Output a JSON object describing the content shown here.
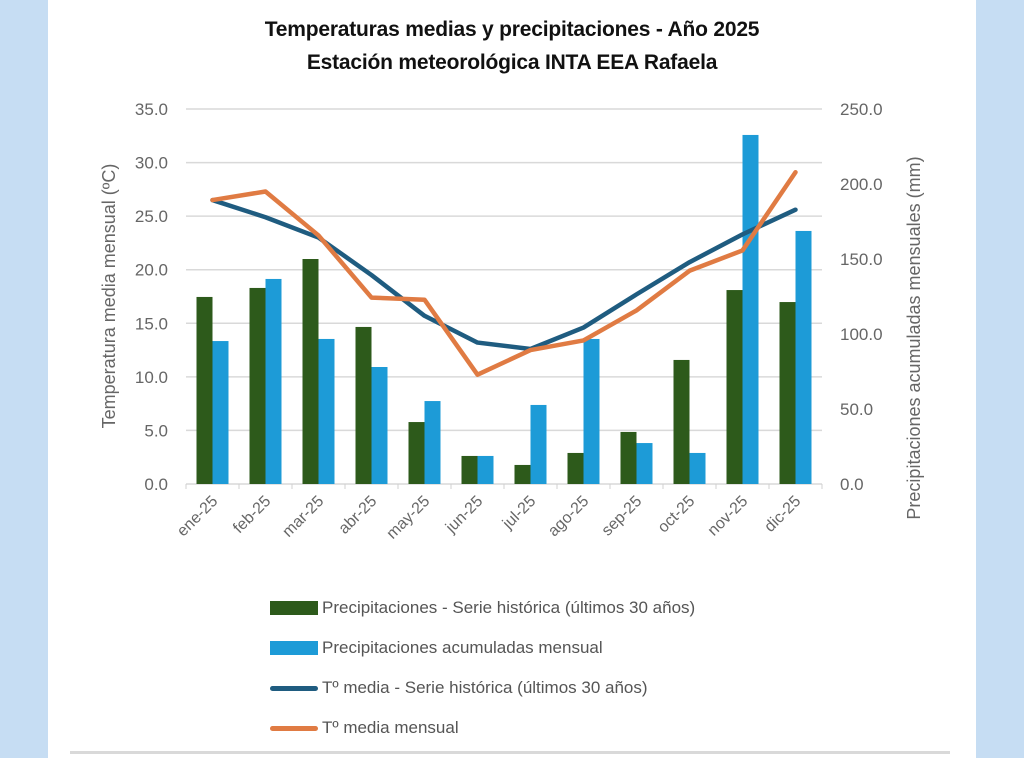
{
  "page": {
    "background_color": "#c6ddf3",
    "panel_color": "#ffffff"
  },
  "chart_data": {
    "type": "bar",
    "title": "Temperaturas medias y precipitaciones - Año 2025",
    "subtitle": "Estación meteorológica INTA EEA Rafaela",
    "categories": [
      "ene-25",
      "feb-25",
      "mar-25",
      "abr-25",
      "may-25",
      "jun-25",
      "jul-25",
      "ago-25",
      "sep-25",
      "oct-25",
      "nov-25",
      "dic-25"
    ],
    "ylabel": "Temperatura media mensual (ºC)",
    "ylabel_right": "Precipitaciones acumuladas mensuales (mm)",
    "ylim": [
      0,
      35
    ],
    "ylim_right": [
      0,
      250
    ],
    "yticks": [
      "0.0",
      "5.0",
      "10.0",
      "15.0",
      "20.0",
      "25.0",
      "30.0",
      "35.0"
    ],
    "yticks_right": [
      "0.0",
      "50.0",
      "100.0",
      "150.0",
      "200.0",
      "250.0"
    ],
    "grid": true,
    "legend_position": "bottom",
    "series": [
      {
        "name": "Precipitaciones - Serie histórica (últimos 30 años)",
        "kind": "bar",
        "axis": "right",
        "color": "#2d5a1b",
        "values": [
          124.7,
          130.7,
          150.0,
          104.7,
          41.3,
          18.7,
          12.7,
          20.7,
          34.7,
          82.7,
          129.3,
          121.3
        ]
      },
      {
        "name": "Precipitaciones acumuladas mensual",
        "kind": "bar",
        "axis": "right",
        "color": "#1d9bd7",
        "values": [
          95.3,
          136.7,
          96.7,
          78.0,
          55.3,
          18.7,
          52.7,
          96.7,
          27.3,
          20.7,
          232.7,
          168.7
        ]
      },
      {
        "name": "Tº media - Serie histórica (últimos 30 años)",
        "kind": "line",
        "axis": "left",
        "color": "#1f5c80",
        "values": [
          26.5,
          24.9,
          23.0,
          19.5,
          15.7,
          13.2,
          12.6,
          14.6,
          17.7,
          20.7,
          23.3,
          25.6
        ]
      },
      {
        "name": "Tº media mensual",
        "kind": "line",
        "axis": "left",
        "color": "#e07b43",
        "values": [
          26.5,
          27.3,
          23.2,
          17.4,
          17.2,
          10.2,
          12.5,
          13.4,
          16.2,
          19.9,
          21.8,
          29.1
        ]
      }
    ]
  }
}
